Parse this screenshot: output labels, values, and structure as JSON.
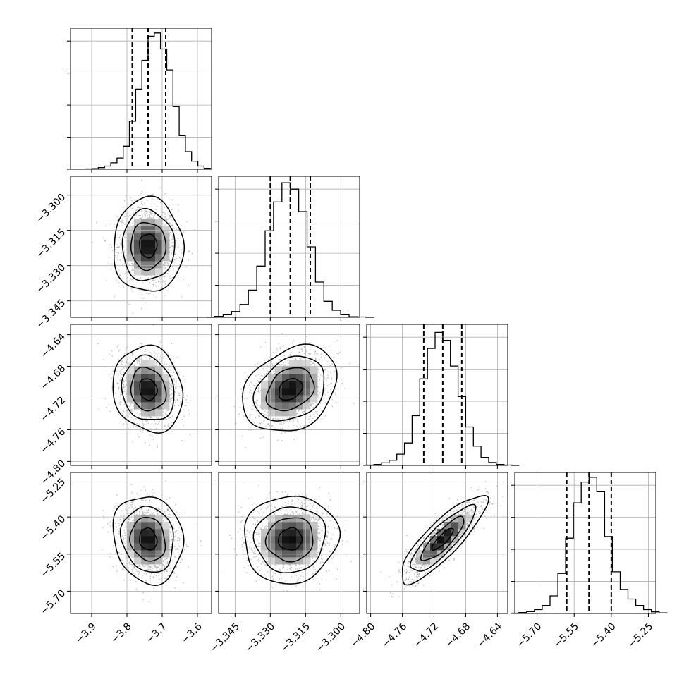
{
  "chart_data": {
    "type": "corner",
    "title": "",
    "grid": true,
    "colors": {
      "line": "#000000",
      "grid": "#b0b0b0",
      "points": "#888888"
    },
    "parameters": [
      {
        "label": "",
        "range": [
          -3.96,
          -3.56
        ],
        "ticks": [
          -3.9,
          -3.8,
          -3.7,
          -3.6
        ],
        "tick_labels": [
          "−3.9",
          "−3.8",
          "−3.7",
          "−3.6"
        ],
        "center": -3.74,
        "sigma": 0.042,
        "quantiles": [
          -3.785,
          -3.74,
          -3.69
        ]
      },
      {
        "label": "",
        "range": [
          -3.352,
          -3.292
        ],
        "ticks": [
          -3.345,
          -3.33,
          -3.315,
          -3.3
        ],
        "tick_labels": [
          "−3.345",
          "−3.330",
          "−3.315",
          "−3.300"
        ],
        "center": -3.3215,
        "sigma": 0.0085,
        "quantiles": [
          -3.33,
          -3.3215,
          -3.313
        ]
      },
      {
        "label": "",
        "range": [
          -4.805,
          -4.627
        ],
        "ticks": [
          -4.8,
          -4.76,
          -4.72,
          -4.68,
          -4.64
        ],
        "tick_labels": [
          "−4.80",
          "−4.76",
          "−4.72",
          "−4.68",
          "−4.64"
        ],
        "center": -4.709,
        "sigma": 0.023,
        "quantiles": [
          -4.733,
          -4.709,
          -4.685
        ]
      },
      {
        "label": "",
        "range": [
          -5.79,
          -5.22
        ],
        "ticks": [
          -5.7,
          -5.55,
          -5.4,
          -5.25
        ],
        "tick_labels": [
          "−5.70",
          "−5.55",
          "−5.40",
          "−5.25"
        ],
        "center": -5.49,
        "sigma": 0.075,
        "quantiles": [
          -5.58,
          -5.49,
          -5.4
        ]
      }
    ],
    "histograms": [
      {
        "param": 0,
        "counts": [
          1,
          2,
          5,
          10,
          20,
          35,
          72,
          150,
          250,
          340,
          415,
          425,
          375,
          310,
          195,
          105,
          55,
          25,
          10,
          3
        ],
        "ylim": [
          0,
          440
        ]
      },
      {
        "param": 1,
        "counts": [
          0,
          3,
          8,
          18,
          40,
          85,
          160,
          270,
          360,
          420,
          400,
          330,
          220,
          110,
          50,
          22,
          8,
          2,
          1,
          0
        ],
        "ylim": [
          0,
          440
        ]
      },
      {
        "param": 2,
        "counts": [
          1,
          3,
          8,
          16,
          35,
          70,
          155,
          270,
          365,
          415,
          390,
          310,
          215,
          120,
          60,
          25,
          9,
          3,
          1,
          0
        ],
        "ylim": [
          0,
          440
        ]
      },
      {
        "param": 3,
        "counts": [
          1,
          3,
          6,
          12,
          25,
          55,
          125,
          235,
          345,
          410,
          425,
          380,
          240,
          130,
          75,
          45,
          25,
          12,
          5,
          2
        ],
        "ylim": [
          0,
          440
        ]
      }
    ],
    "pairs": [
      {
        "x": 0,
        "y": 1,
        "correlation": 0.0
      },
      {
        "x": 0,
        "y": 2,
        "correlation": -0.12
      },
      {
        "x": 1,
        "y": 2,
        "correlation": 0.28
      },
      {
        "x": 0,
        "y": 3,
        "correlation": -0.12
      },
      {
        "x": 1,
        "y": 3,
        "correlation": 0.05
      },
      {
        "x": 2,
        "y": 3,
        "correlation": 0.85
      }
    ],
    "contour_levels_sigma": [
      0.5,
      1.0,
      1.5,
      2.0
    ]
  }
}
